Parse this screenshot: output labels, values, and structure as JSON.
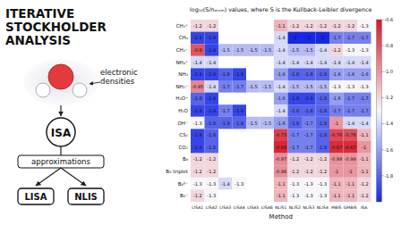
{
  "chart_data": {
    "type": "heatmap",
    "title": "log₁₀(S/nₐₜₒₘ) values, where S is the Kullback-Leibler divergence",
    "x_label": "Method",
    "categories": [
      "LISA1",
      "LISA2",
      "LISA3",
      "LISA4",
      "LISA5",
      "LISA6",
      "NLIS1",
      "NLIS2",
      "NLIS3",
      "NLIS4",
      "MBIS",
      "GMBIS",
      "ISA"
    ],
    "rows": [
      "CH₃⁺",
      "CH₄",
      "CH₃⁻",
      "NH₄⁺",
      "NH₃",
      "NH₂⁻",
      "H₃O⁺",
      "H₂O",
      "OH⁻",
      "CS₂",
      "CO₂",
      "B₈",
      "B₈ triplet",
      "B₈²⁻",
      "B₈⁻"
    ],
    "values": [
      [
        -1.2,
        -1.2,
        null,
        null,
        null,
        null,
        -1.1,
        -1.2,
        -1.2,
        -1.2,
        -1.2,
        -1.2,
        -1.3
      ],
      [
        -1.9,
        -1.9,
        null,
        null,
        null,
        null,
        -1.4,
        -2,
        -2,
        -2,
        -1.7,
        -1.7,
        -1.7
      ],
      [
        -0.8,
        -1.9,
        -1.5,
        -1.5,
        -1.5,
        -1.5,
        -1.4,
        -1.5,
        -1.5,
        -1.4,
        -1.2,
        -1.3,
        -1.3
      ],
      [
        -1.4,
        -1.4,
        null,
        null,
        null,
        null,
        -1.4,
        -1.4,
        -1.4,
        -1.4,
        -1.4,
        -1.4,
        -1.4
      ],
      [
        -1.9,
        -1.9,
        -1.8,
        -1.9,
        null,
        null,
        -1.6,
        -1.8,
        -1.8,
        -1.8,
        -1.6,
        -1.6,
        -1.6
      ],
      [
        -0.95,
        -1.4,
        -1.7,
        -1.7,
        -1.5,
        -1.5,
        -1.4,
        -1.5,
        -1.5,
        -1.5,
        -1.3,
        -1.3,
        -1.3
      ],
      [
        -1.8,
        -1.9,
        null,
        null,
        null,
        null,
        -1.6,
        -1.9,
        -1.9,
        -1.8,
        -1.6,
        -1.7,
        -1.7
      ],
      [
        -1.9,
        -1.9,
        -1.7,
        -1.9,
        null,
        null,
        -1.4,
        -1.8,
        -1.8,
        -1.8,
        -1.7,
        -1.7,
        -1.7
      ],
      [
        -1.3,
        -1.8,
        -1.8,
        -1.8,
        -1.5,
        -1.5,
        -1.6,
        -1.8,
        -1.7,
        -1.8,
        -1,
        -1.4,
        -1.4
      ],
      [
        -1.9,
        -1.8,
        null,
        null,
        null,
        null,
        -0.73,
        -1.7,
        -1.7,
        -1.8,
        -0.76,
        -0.78,
        -1.1
      ],
      [
        -1.9,
        -1.8,
        null,
        null,
        null,
        null,
        -0.65,
        -1.7,
        -1.7,
        -1.8,
        -0.67,
        -0.67,
        -1
      ],
      [
        -1.2,
        -1.2,
        null,
        null,
        null,
        null,
        -0.97,
        -1.2,
        -1.2,
        -1.2,
        -0.99,
        -0.99,
        -1.1
      ],
      [
        -1.2,
        -1.2,
        null,
        null,
        null,
        null,
        -0.98,
        -1.2,
        -1.2,
        -1.2,
        -1,
        -1,
        -1.1
      ],
      [
        -1.3,
        -1.3,
        -1.4,
        -1.3,
        null,
        null,
        -1.1,
        -1.3,
        -1.3,
        -1.3,
        -1.1,
        -1.1,
        -1.2
      ],
      [
        -1.2,
        -1.3,
        null,
        null,
        null,
        null,
        -1.1,
        -1.3,
        -1.3,
        -1.3,
        -1.1,
        -1.1,
        -1.2
      ]
    ],
    "data_labels": true,
    "colorbar": {
      "range": [
        -2,
        -0.6
      ],
      "ticks": [
        -0.6,
        -0.8,
        {
          "value": -1,
          "label": "-1.0"
        },
        -1.2,
        -1.4,
        -1.6,
        -1.8
      ]
    }
  },
  "diagram": {
    "title": [
      "ITERATIVE",
      "STOCKHOLDER",
      "ANALYSIS"
    ],
    "annotation": [
      "electronic",
      "densities"
    ],
    "center": "ISA",
    "branch": "approximations",
    "leaves": [
      "LISA",
      "NLIS"
    ]
  }
}
